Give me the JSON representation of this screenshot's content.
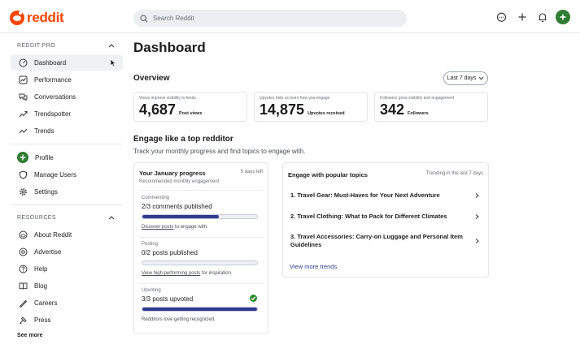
{
  "header": {
    "logo_text": "reddit",
    "search_placeholder": "Search Reddit"
  },
  "sidebar": {
    "pro_heading": "REDDIT PRO",
    "pro_items": [
      {
        "label": "Dashboard",
        "icon": "dashboard-icon"
      },
      {
        "label": "Performance",
        "icon": "chart-icon"
      },
      {
        "label": "Conversations",
        "icon": "conversations-icon"
      },
      {
        "label": "Trendspotter",
        "icon": "trendspotter-icon"
      },
      {
        "label": "Trends",
        "icon": "trends-icon"
      }
    ],
    "account_items": [
      {
        "label": "Profile",
        "icon": "profile-plus-icon"
      },
      {
        "label": "Manage Users",
        "icon": "shield-icon"
      },
      {
        "label": "Settings",
        "icon": "gear-icon"
      }
    ],
    "resources_heading": "RESOURCES",
    "resource_items": [
      {
        "label": "About Reddit",
        "icon": "reddit-icon"
      },
      {
        "label": "Advertise",
        "icon": "advertise-icon"
      },
      {
        "label": "Help",
        "icon": "help-icon"
      },
      {
        "label": "Blog",
        "icon": "blog-icon"
      },
      {
        "label": "Careers",
        "icon": "careers-icon"
      },
      {
        "label": "Press",
        "icon": "press-icon"
      }
    ],
    "see_more": "See more"
  },
  "main": {
    "title": "Dashboard",
    "overview_label": "Overview",
    "range_label": "Last 7 days",
    "stats": [
      {
        "caption": "Views improve visibility in feeds",
        "value": "4,687",
        "unit": "Post views"
      },
      {
        "caption": "Upvotes help us learn how you engage",
        "value": "14,875",
        "unit": "Upvotes received"
      },
      {
        "caption": "Followers grow visibility and engagement",
        "value": "342",
        "unit": "Followers"
      }
    ],
    "engage_title": "Engage like a top redditor",
    "engage_subtitle": "Track your monthly progress and find topics to engage with."
  },
  "progress": {
    "title": "Your January progress",
    "days_left": "5 days left",
    "subtitle": "Recommended monthly engagement",
    "tasks": [
      {
        "category": "Commenting",
        "title": "2/3 comments published",
        "fraction": 0.667,
        "note_link": "Discover posts",
        "note_rest": " to engage with.",
        "done": false
      },
      {
        "category": "Posting",
        "title": "0/2 posts published",
        "fraction": 0,
        "note_link": "View high performing posts",
        "note_rest": " for inspiration.",
        "done": false
      },
      {
        "category": "Upvoting",
        "title": "3/3 posts upvoted",
        "fraction": 1,
        "note_link": "",
        "note_rest": "Redditors love getting recognized.",
        "done": true
      }
    ]
  },
  "topics": {
    "title": "Engage with popular topics",
    "trend_note": "Trending in the last 7 days",
    "items": [
      "1. Travel Gear: Must-Haves for Your Next Adventure",
      "2. Travel Clothing: What to Pack for Different Climates",
      "3. Travel Accessories: Carry-on Luggage and Personal Item Guidelines"
    ],
    "view_more": "View more trends"
  },
  "colors": {
    "brand": "#ff4500",
    "progress_fill": "#2e3b8f",
    "create_button": "#2e7d32",
    "check": "#2e8b2e"
  }
}
